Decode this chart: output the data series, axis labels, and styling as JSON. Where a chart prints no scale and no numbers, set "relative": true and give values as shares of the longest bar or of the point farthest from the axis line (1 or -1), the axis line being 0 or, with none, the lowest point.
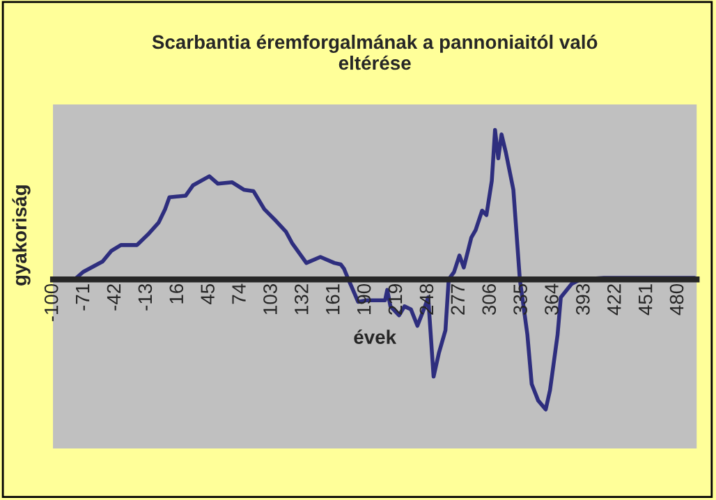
{
  "chart_data": {
    "type": "line",
    "title": "Scarbantia éremforgalmának a pannoniaitól való\neltérése",
    "xlabel": "évek",
    "ylabel": "gyakoriság",
    "relative": true,
    "legend": false,
    "xlim": [
      -100,
      497
    ],
    "xticks": [
      -100,
      -71,
      -42,
      -13,
      16,
      45,
      74,
      103,
      132,
      161,
      190,
      219,
      248,
      277,
      306,
      335,
      364,
      393,
      422,
      451,
      480
    ],
    "x": [
      -100,
      -80,
      -72,
      -54,
      -46,
      -37,
      -22,
      -12,
      -2,
      4,
      8,
      23,
      30,
      40,
      45,
      53,
      66,
      77,
      86,
      96,
      107,
      116,
      122,
      135,
      148,
      161,
      167,
      170,
      174,
      183,
      191,
      208,
      210,
      213,
      221,
      226,
      232,
      238,
      245,
      248,
      253,
      258,
      264,
      267,
      272,
      277,
      281,
      288,
      292,
      298,
      302,
      307,
      310,
      313,
      316,
      320,
      327,
      333,
      340,
      344,
      350,
      357,
      361,
      368,
      371,
      381,
      389,
      411,
      495
    ],
    "series": [
      {
        "color": "#2e2e7e",
        "values": [
          0,
          0,
          0.05,
          0.12,
          0.19,
          0.23,
          0.23,
          0.3,
          0.38,
          0.47,
          0.55,
          0.56,
          0.63,
          0.67,
          0.69,
          0.64,
          0.65,
          0.6,
          0.59,
          0.47,
          0.39,
          0.32,
          0.24,
          0.11,
          0.15,
          0.11,
          0.1,
          0.07,
          0,
          -0.15,
          -0.14,
          -0.14,
          -0.07,
          -0.18,
          -0.24,
          -0.18,
          -0.2,
          -0.31,
          -0.18,
          -0.12,
          -0.65,
          -0.49,
          -0.34,
          0,
          0.05,
          0.16,
          0.08,
          0.28,
          0.33,
          0.46,
          0.43,
          0.66,
          1,
          0.81,
          0.97,
          0.85,
          0.6,
          0,
          -0.37,
          -0.7,
          -0.81,
          -0.87,
          -0.74,
          -0.37,
          -0.12,
          -0.03,
          0,
          0.01,
          0.01
        ]
      }
    ]
  }
}
